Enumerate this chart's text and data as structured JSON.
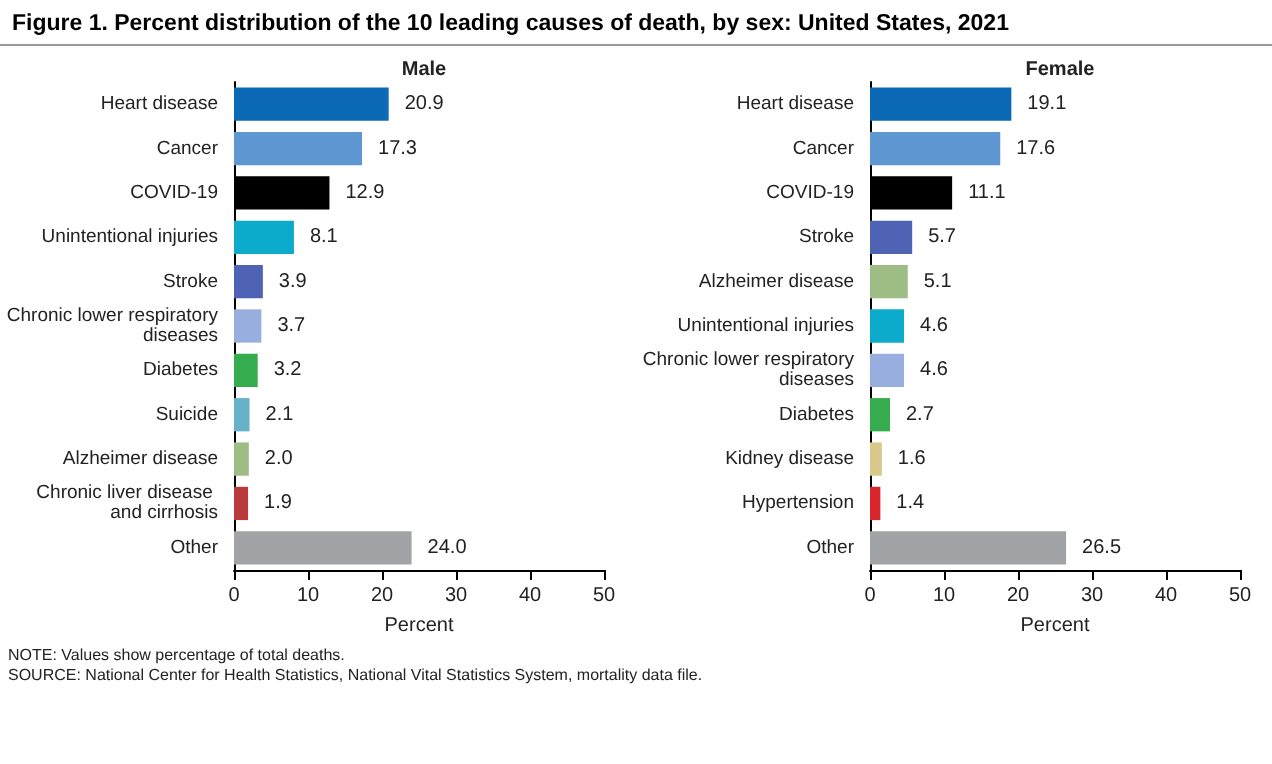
{
  "chart_data": [
    {
      "type": "bar",
      "orientation": "horizontal",
      "title": "Figure 1. Percent distribution of the 10 leading causes of death, by sex: United States, 2021",
      "subtitle": "Male",
      "xlabel": "Percent",
      "categories": [
        "Heart disease",
        "Cancer",
        "COVID-19",
        "Unintentional injuries",
        "Stroke",
        "Chronic lower respiratory diseases",
        "Diabetes",
        "Suicide",
        "Alzheimer disease",
        "Chronic liver disease and cirrhosis",
        "Other"
      ],
      "values": [
        20.9,
        17.3,
        12.9,
        8.1,
        3.9,
        3.7,
        3.2,
        2.1,
        2.0,
        1.9,
        24.0
      ],
      "colors": [
        "#0b69b5",
        "#5f97d2",
        "#000000",
        "#0cabcc",
        "#4f63b4",
        "#98aedf",
        "#35ad4e",
        "#67b2c9",
        "#9ebd85",
        "#b9393d",
        "#a1a3a6"
      ],
      "value_labels": [
        "20.9",
        "17.3",
        "12.9",
        "8.1",
        "3.9",
        "3.7",
        "3.2",
        "2.1",
        "2.0",
        "1.9",
        "24.0"
      ],
      "xlim": [
        0,
        50
      ],
      "xticks": [
        0,
        10,
        20,
        30,
        40,
        50
      ],
      "grid": false,
      "annotations": [
        "NOTE: Values show percentage of total deaths.",
        "SOURCE: National Center for Health Statistics, National Vital Statistics System, mortality data file."
      ]
    },
    {
      "type": "bar",
      "orientation": "horizontal",
      "subtitle": "Female",
      "xlabel": "Percent",
      "categories": [
        "Heart disease",
        "Cancer",
        "COVID-19",
        "Stroke",
        "Alzheimer disease",
        "Unintentional injuries",
        "Chronic lower respiratory diseases",
        "Diabetes",
        "Kidney disease",
        "Hypertension",
        "Other"
      ],
      "values": [
        19.1,
        17.6,
        11.1,
        5.7,
        5.1,
        4.6,
        4.6,
        2.7,
        1.6,
        1.4,
        26.5
      ],
      "colors": [
        "#0b69b5",
        "#5f97d2",
        "#000000",
        "#4f63b4",
        "#9ebd85",
        "#0cabcc",
        "#98aedf",
        "#35ad4e",
        "#d8c98a",
        "#d8262c",
        "#a1a3a6"
      ],
      "value_labels": [
        "19.1",
        "17.6",
        "11.1",
        "5.7",
        "5.1",
        "4.6",
        "4.6",
        "2.7",
        "1.6",
        "1.4",
        "26.5"
      ],
      "xlim": [
        0,
        50
      ],
      "xticks": [
        0,
        10,
        20,
        30,
        40,
        50
      ],
      "grid": false
    }
  ]
}
